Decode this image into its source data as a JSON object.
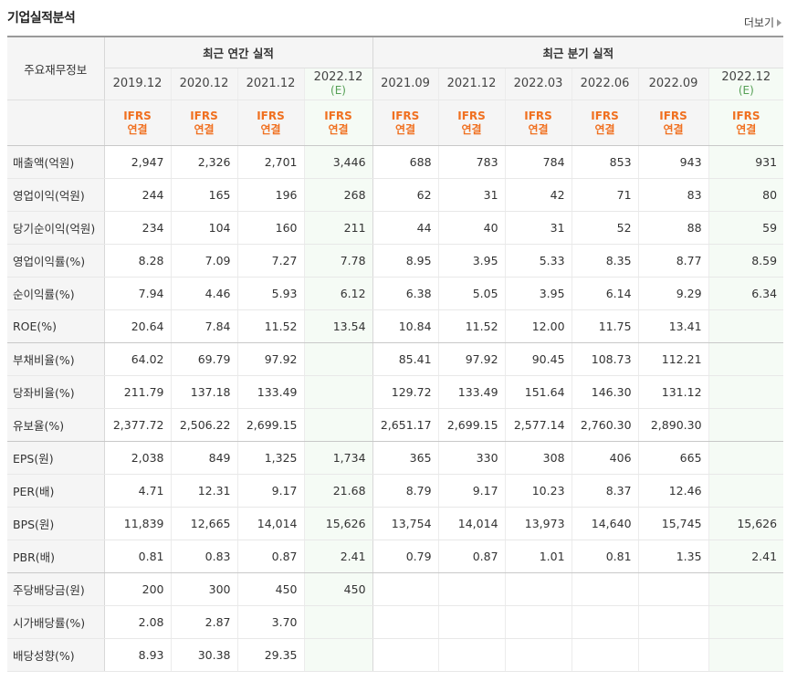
{
  "section_title": "기업실적분석",
  "more_link": "더보기",
  "header": {
    "row_header": "주요재무정보",
    "annual_group": "최근 연간 실적",
    "quarterly_group": "최근 분기 실적",
    "ifrs_line1": "IFRS",
    "ifrs_line2": "연결",
    "periods": [
      {
        "label": "2019.12",
        "est": ""
      },
      {
        "label": "2020.12",
        "est": ""
      },
      {
        "label": "2021.12",
        "est": ""
      },
      {
        "label": "2022.12",
        "est": "(E)"
      },
      {
        "label": "2021.09",
        "est": ""
      },
      {
        "label": "2021.12",
        "est": ""
      },
      {
        "label": "2022.03",
        "est": ""
      },
      {
        "label": "2022.06",
        "est": ""
      },
      {
        "label": "2022.09",
        "est": ""
      },
      {
        "label": "2022.12",
        "est": "(E)"
      }
    ]
  },
  "rows": [
    {
      "label": "매출액(억원)",
      "values": [
        "2,947",
        "2,326",
        "2,701",
        "3,446",
        "688",
        "783",
        "784",
        "853",
        "943",
        "931"
      ]
    },
    {
      "label": "영업이익(억원)",
      "values": [
        "244",
        "165",
        "196",
        "268",
        "62",
        "31",
        "42",
        "71",
        "83",
        "80"
      ]
    },
    {
      "label": "당기순이익(억원)",
      "values": [
        "234",
        "104",
        "160",
        "211",
        "44",
        "40",
        "31",
        "52",
        "88",
        "59"
      ]
    },
    {
      "label": "영업이익률(%)",
      "values": [
        "8.28",
        "7.09",
        "7.27",
        "7.78",
        "8.95",
        "3.95",
        "5.33",
        "8.35",
        "8.77",
        "8.59"
      ]
    },
    {
      "label": "순이익률(%)",
      "values": [
        "7.94",
        "4.46",
        "5.93",
        "6.12",
        "6.38",
        "5.05",
        "3.95",
        "6.14",
        "9.29",
        "6.34"
      ]
    },
    {
      "label": "ROE(%)",
      "values": [
        "20.64",
        "7.84",
        "11.52",
        "13.54",
        "10.84",
        "11.52",
        "12.00",
        "11.75",
        "13.41",
        ""
      ]
    },
    {
      "label": "부채비율(%)",
      "values": [
        "64.02",
        "69.79",
        "97.92",
        "",
        "85.41",
        "97.92",
        "90.45",
        "108.73",
        "112.21",
        ""
      ]
    },
    {
      "label": "당좌비율(%)",
      "values": [
        "211.79",
        "137.18",
        "133.49",
        "",
        "129.72",
        "133.49",
        "151.64",
        "146.30",
        "131.12",
        ""
      ]
    },
    {
      "label": "유보율(%)",
      "values": [
        "2,377.72",
        "2,506.22",
        "2,699.15",
        "",
        "2,651.17",
        "2,699.15",
        "2,577.14",
        "2,760.30",
        "2,890.30",
        ""
      ]
    },
    {
      "label": "EPS(원)",
      "values": [
        "2,038",
        "849",
        "1,325",
        "1,734",
        "365",
        "330",
        "308",
        "406",
        "665",
        ""
      ]
    },
    {
      "label": "PER(배)",
      "values": [
        "4.71",
        "12.31",
        "9.17",
        "21.68",
        "8.79",
        "9.17",
        "10.23",
        "8.37",
        "12.46",
        ""
      ]
    },
    {
      "label": "BPS(원)",
      "values": [
        "11,839",
        "12,665",
        "14,014",
        "15,626",
        "13,754",
        "14,014",
        "13,973",
        "14,640",
        "15,745",
        "15,626"
      ]
    },
    {
      "label": "PBR(배)",
      "values": [
        "0.81",
        "0.83",
        "0.87",
        "2.41",
        "0.79",
        "0.87",
        "1.01",
        "0.81",
        "1.35",
        "2.41"
      ]
    },
    {
      "label": "주당배당금(원)",
      "values": [
        "200",
        "300",
        "450",
        "450",
        "",
        "",
        "",
        "",
        "",
        ""
      ]
    },
    {
      "label": "시가배당률(%)",
      "values": [
        "2.08",
        "2.87",
        "3.70",
        "",
        "",
        "",
        "",
        "",
        "",
        ""
      ]
    },
    {
      "label": "배당성향(%)",
      "values": [
        "8.93",
        "30.38",
        "29.35",
        "",
        "",
        "",
        "",
        "",
        "",
        ""
      ]
    }
  ],
  "group_breaks_after": [
    5,
    8,
    12
  ]
}
